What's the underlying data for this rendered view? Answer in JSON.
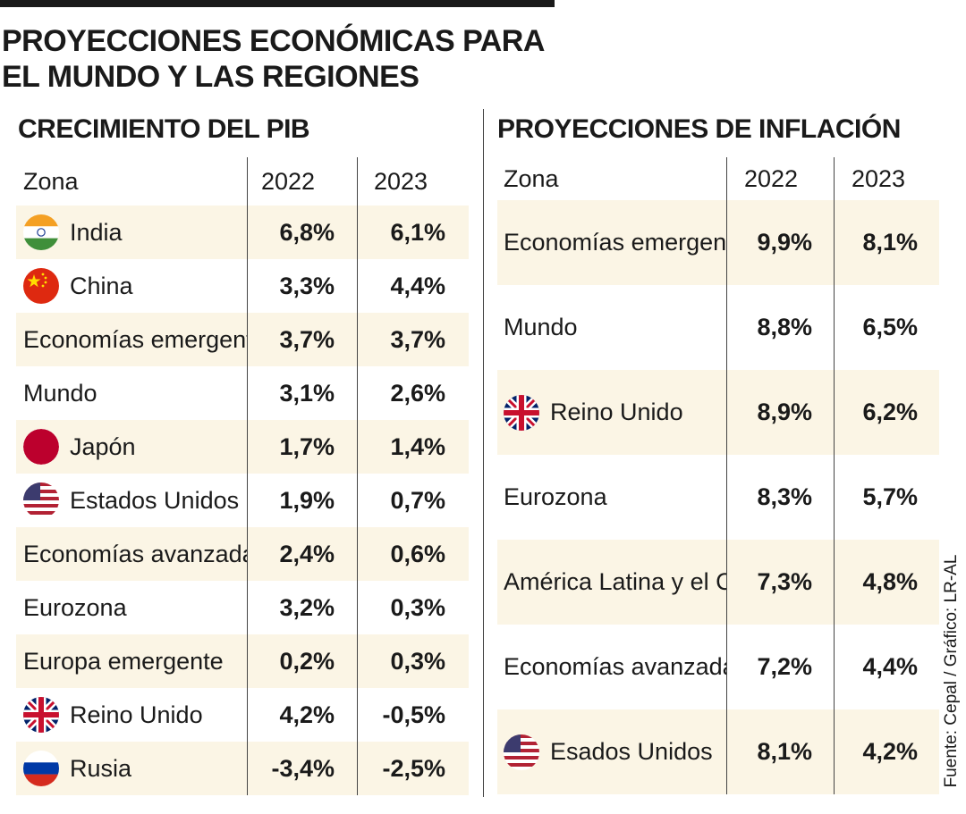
{
  "title_line1": "PROYECCIONES ECONÓMICAS PARA",
  "title_line2": "EL MUNDO Y LAS REGIONES",
  "source": "Fuente: Cepal / Gráfico: LR-AL",
  "colors": {
    "shade": "#fbf5e5",
    "text": "#1a1a1a"
  },
  "chart_data": [
    {
      "type": "table",
      "title": "CRECIMIENTO DEL PIB",
      "columns": [
        "Zona",
        "2022",
        "2023"
      ],
      "rows": [
        {
          "zona": "India",
          "flag": "india-flag-icon",
          "v2022": "6,8%",
          "v2023": "6,1%"
        },
        {
          "zona": "China",
          "flag": "china-flag-icon",
          "v2022": "3,3%",
          "v2023": "4,4%"
        },
        {
          "zona": "Economías emergentes",
          "flag": "",
          "v2022": "3,7%",
          "v2023": "3,7%"
        },
        {
          "zona": "Mundo",
          "flag": "",
          "v2022": "3,1%",
          "v2023": "2,6%"
        },
        {
          "zona": "Japón",
          "flag": "japan-flag-icon",
          "v2022": "1,7%",
          "v2023": "1,4%"
        },
        {
          "zona": "Estados Unidos",
          "flag": "usa-flag-icon",
          "v2022": "1,9%",
          "v2023": "0,7%"
        },
        {
          "zona": "Economías avanzadas",
          "flag": "",
          "v2022": "2,4%",
          "v2023": "0,6%"
        },
        {
          "zona": "Eurozona",
          "flag": "",
          "v2022": "3,2%",
          "v2023": "0,3%"
        },
        {
          "zona": "Europa emergente",
          "flag": "",
          "v2022": "0,2%",
          "v2023": "0,3%"
        },
        {
          "zona": "Reino Unido",
          "flag": "uk-flag-icon",
          "v2022": "4,2%",
          "v2023": "-0,5%"
        },
        {
          "zona": "Rusia",
          "flag": "russia-flag-icon",
          "v2022": "-3,4%",
          "v2023": "-2,5%"
        }
      ]
    },
    {
      "type": "table",
      "title": "PROYECCIONES DE INFLACIÓN",
      "columns": [
        "Zona",
        "2022",
        "2023"
      ],
      "rows": [
        {
          "zona": "Economías emergentes",
          "flag": "",
          "v2022": "9,9%",
          "v2023": "8,1%"
        },
        {
          "zona": "Mundo",
          "flag": "",
          "v2022": "8,8%",
          "v2023": "6,5%"
        },
        {
          "zona": "Reino Unido",
          "flag": "uk-flag-icon",
          "v2022": "8,9%",
          "v2023": "6,2%"
        },
        {
          "zona": "Eurozona",
          "flag": "",
          "v2022": "8,3%",
          "v2023": "5,7%"
        },
        {
          "zona": "América Latina y el Caribe",
          "flag": "",
          "v2022": "7,3%",
          "v2023": "4,8%"
        },
        {
          "zona": "Economías avanzadas",
          "flag": "",
          "v2022": "7,2%",
          "v2023": "4,4%"
        },
        {
          "zona": "Esados Unidos",
          "flag": "usa-flag-icon",
          "v2022": "8,1%",
          "v2023": "4,2%"
        }
      ]
    }
  ]
}
